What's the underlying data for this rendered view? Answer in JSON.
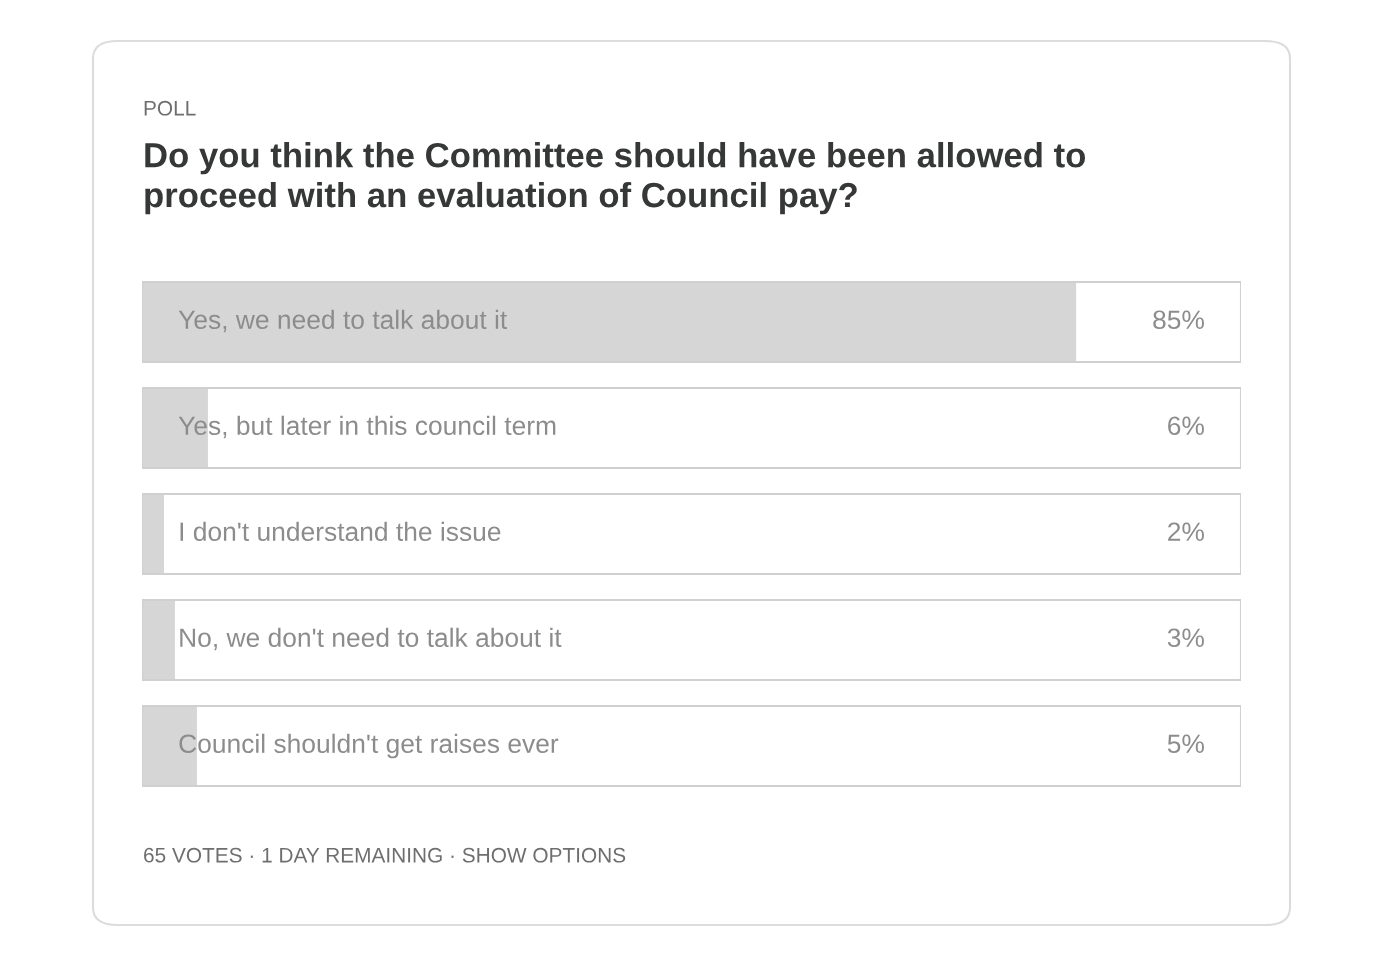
{
  "chart_data": {
    "type": "bar",
    "orientation": "horizontal",
    "subtitle": "POLL",
    "title": "Do you think the Committee should have been allowed to proceed with an evaluation of Council pay?",
    "categories": [
      "Yes, we need to talk about it",
      "Yes, but later in this council term",
      "I don't understand the issue",
      "No, we don't need to talk about it",
      "Council shouldn't get raises ever"
    ],
    "values": [
      85,
      6,
      2,
      3,
      5
    ],
    "value_labels": [
      "85%",
      "6%",
      "2%",
      "3%",
      "5%"
    ],
    "color": "#d6d6d6",
    "xlim": [
      0,
      100
    ],
    "annotations": [
      "65 VOTES · 1 DAY REMAINING · SHOW OPTIONS"
    ]
  }
}
